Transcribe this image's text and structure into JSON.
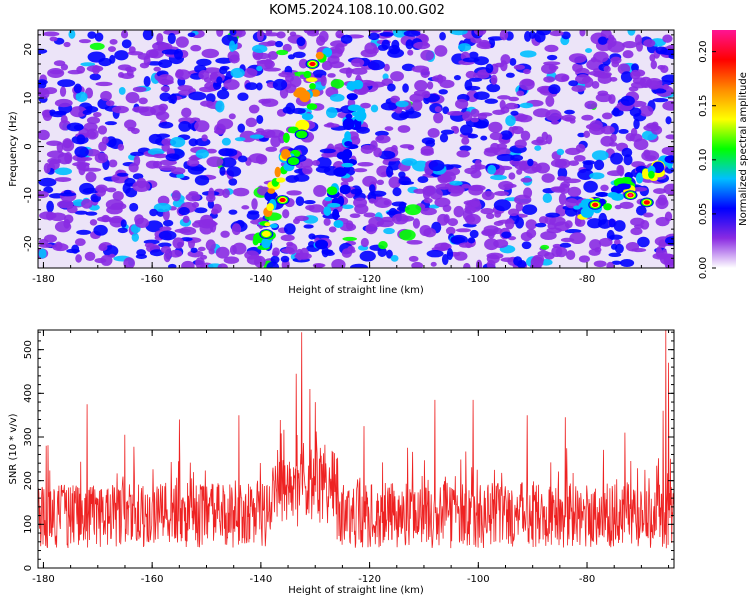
{
  "title": "KOM5.2024.108.10.00.G02",
  "spectrogram": {
    "type": "heatmap",
    "xlabel": "Height of straight line (km)",
    "ylabel": "Frequency (Hz)",
    "xlim": [
      -181,
      -64
    ],
    "ylim": [
      -25,
      24
    ],
    "xticks": [
      "-180",
      "-160",
      "-140",
      "-120",
      "-100",
      "-80"
    ],
    "xtick_values": [
      -180,
      -160,
      -140,
      -120,
      -100,
      -80
    ],
    "yticks": [
      "20",
      "10",
      "0",
      "-10",
      "-20"
    ],
    "ytick_values": [
      20,
      10,
      0,
      -10,
      -20
    ],
    "colorbar": {
      "label": "Normalized spectral amplitude",
      "range": [
        0,
        0.22
      ],
      "ticks": [
        "0.00",
        "0.05",
        "0.10",
        "0.15",
        "0.20"
      ],
      "tick_values": [
        0,
        0.05,
        0.1,
        0.15,
        0.2
      ],
      "colors": [
        "#ffffff",
        "#8a2be2",
        "#0000ff",
        "#00bfff",
        "#00ff00",
        "#ffff00",
        "#ff8c00",
        "#ff0000",
        "#ff1493"
      ]
    },
    "ridges": [
      {
        "x": [
          -140,
          -129
        ],
        "y": [
          -20,
          19
        ],
        "amplitude": 0.17
      },
      {
        "x": [
          -128,
          -122
        ],
        "y": [
          -22,
          12
        ],
        "amplitude": 0.1
      },
      {
        "x": [
          -82,
          -64
        ],
        "y": [
          -14,
          -3
        ],
        "amplitude": 0.15
      }
    ],
    "peaks": [
      {
        "x": -130.5,
        "y": 17,
        "amplitude": 0.19
      },
      {
        "x": -136,
        "y": -11,
        "amplitude": 0.2
      },
      {
        "x": -72,
        "y": -10,
        "amplitude": 0.21
      },
      {
        "x": -78.5,
        "y": -12,
        "amplitude": 0.18
      },
      {
        "x": -69,
        "y": -11.5,
        "amplitude": 0.18
      },
      {
        "x": -139,
        "y": -18,
        "amplitude": 0.16
      },
      {
        "x": -134,
        "y": -3,
        "amplitude": 0.12
      },
      {
        "x": -132.5,
        "y": 2.5,
        "amplitude": 0.12
      }
    ]
  },
  "chart_data": {
    "type": "line",
    "xlabel": "Height of straight line (km)",
    "ylabel": "SNR (10 * v/v)",
    "xlim": [
      -181,
      -64
    ],
    "ylim": [
      0,
      545
    ],
    "xticks": [
      "-180",
      "-160",
      "-140",
      "-120",
      "-100",
      "-80"
    ],
    "xtick_values": [
      -180,
      -160,
      -140,
      -120,
      -100,
      -80
    ],
    "yticks": [
      "0",
      "100",
      "200",
      "300",
      "400",
      "500"
    ],
    "ytick_values": [
      0,
      100,
      200,
      300,
      400,
      500
    ],
    "series": [
      {
        "color": "#ee2222",
        "sample_count": 1400,
        "baseline_mean": 120,
        "typical_range": [
          30,
          250
        ],
        "spikes": [
          {
            "x": -132.5,
            "y": 540
          },
          {
            "x": -133.5,
            "y": 445
          },
          {
            "x": -131,
            "y": 410
          },
          {
            "x": -130,
            "y": 380
          },
          {
            "x": -172,
            "y": 375
          },
          {
            "x": -108,
            "y": 385
          },
          {
            "x": -101,
            "y": 385
          },
          {
            "x": -144,
            "y": 350
          },
          {
            "x": -155,
            "y": 340
          },
          {
            "x": -121,
            "y": 325
          },
          {
            "x": -91,
            "y": 350
          },
          {
            "x": -84,
            "y": 345
          },
          {
            "x": -73,
            "y": 310
          },
          {
            "x": -65.5,
            "y": 545
          },
          {
            "x": -65,
            "y": 470
          },
          {
            "x": -66,
            "y": 360
          },
          {
            "x": -179.5,
            "y": 280
          },
          {
            "x": -165,
            "y": 305
          }
        ]
      }
    ]
  }
}
